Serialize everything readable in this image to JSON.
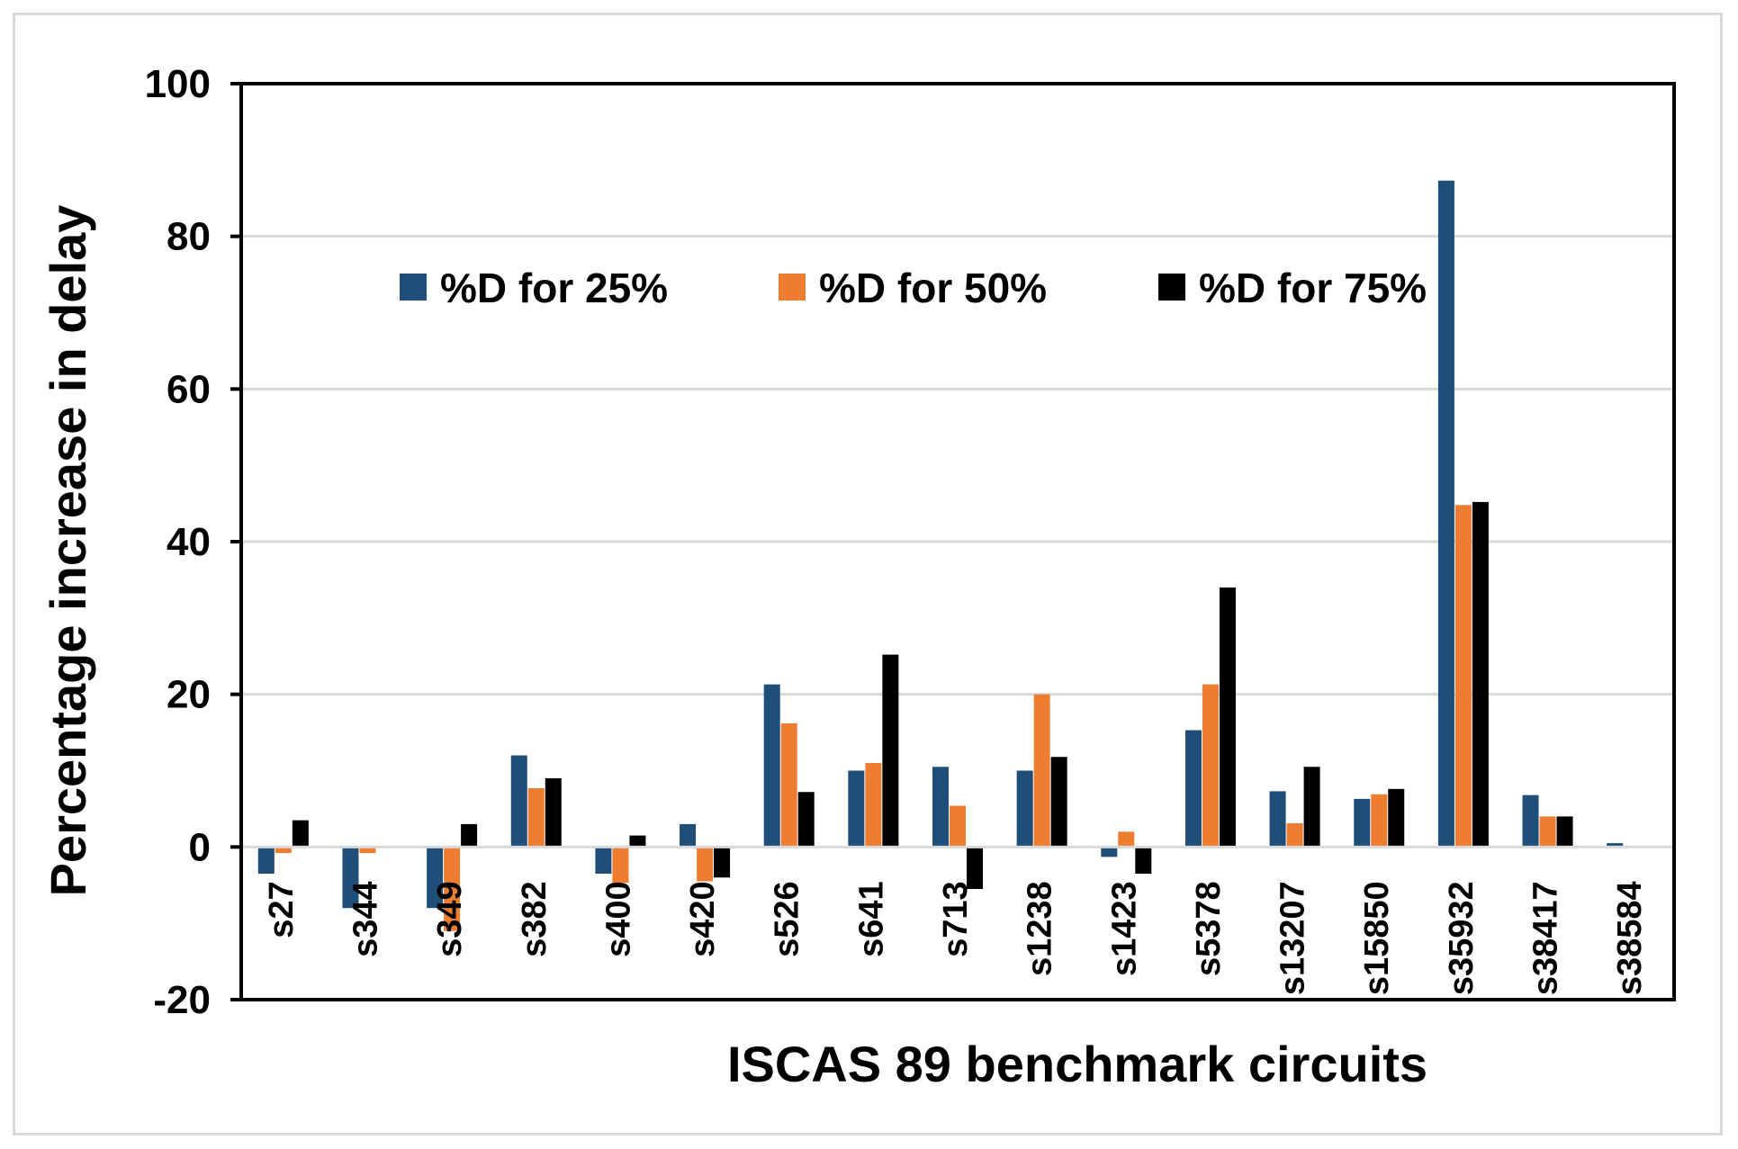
{
  "chart_data": {
    "type": "bar",
    "title": "",
    "xlabel": "ISCAS 89 benchmark circuits",
    "ylabel": "Percentage increase in delay",
    "ylim": [
      -20,
      100
    ],
    "yticks": [
      -20,
      0,
      20,
      40,
      60,
      80,
      100
    ],
    "grid": true,
    "legend_position": "top",
    "categories": [
      "s27",
      "s344",
      "s349",
      "s382",
      "s400",
      "s420",
      "s526",
      "s641",
      "s713",
      "s1238",
      "s1423",
      "s5378",
      "s13207",
      "s15850",
      "s35932",
      "s38417",
      "s38584"
    ],
    "series": [
      {
        "name": "%D for 25%",
        "color": "#1f4e79",
        "values": [
          -3.5,
          -8,
          -8,
          12,
          -3.5,
          3,
          21.3,
          10,
          10.5,
          10,
          -1.3,
          15.3,
          7.3,
          6.3,
          87.3,
          6.8,
          0.5
        ]
      },
      {
        "name": "%D for 50%",
        "color": "#ed7d31",
        "values": [
          -0.8,
          -0.8,
          -11,
          7.7,
          -4.7,
          -4.5,
          16.2,
          11,
          5.4,
          20,
          2,
          21.3,
          3.1,
          6.9,
          44.8,
          4,
          0
        ]
      },
      {
        "name": "%D for 75%",
        "color": "#000000",
        "values": [
          3.5,
          0,
          3,
          9,
          1.5,
          -4,
          7.2,
          25.2,
          -5.5,
          11.8,
          -3.5,
          34,
          10.5,
          7.6,
          45.2,
          4,
          0
        ]
      }
    ]
  }
}
